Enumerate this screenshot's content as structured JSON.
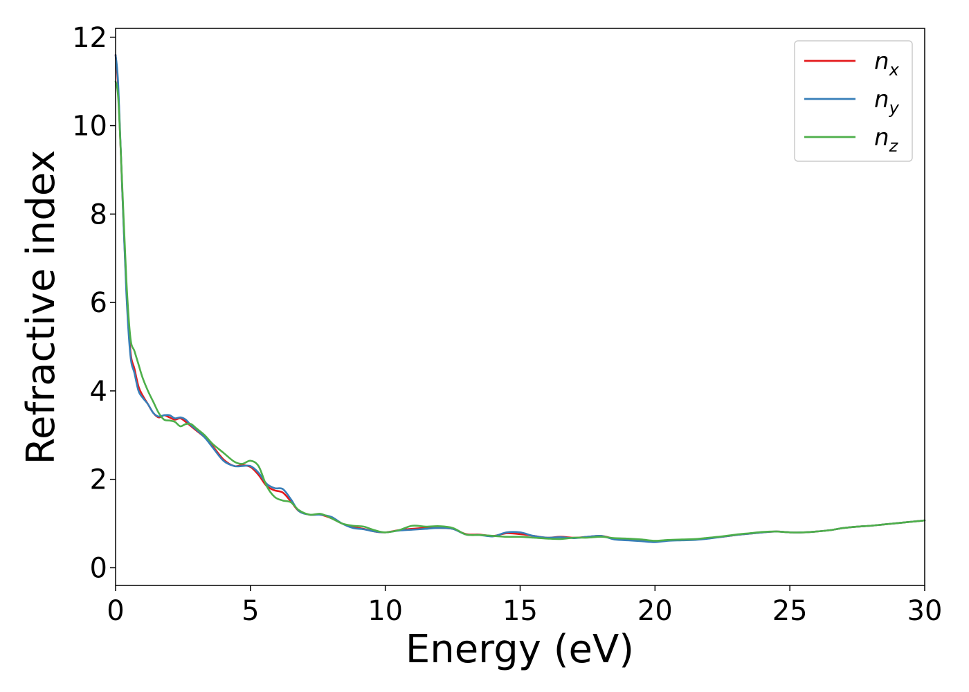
{
  "chart_data": {
    "type": "line",
    "xlabel": "Energy (eV)",
    "ylabel": "Refractive index",
    "xlim": [
      0,
      30
    ],
    "ylim": [
      -0.4,
      12.2
    ],
    "xticks": [
      0,
      5,
      10,
      15,
      20,
      25,
      30
    ],
    "yticks": [
      0,
      2,
      4,
      6,
      8,
      10,
      12
    ],
    "grid": false,
    "legend": "top-right",
    "series": [
      {
        "name": "n",
        "subscript": "x",
        "color": "#e41a1c",
        "x": [
          0,
          0.1,
          0.25,
          0.4,
          0.55,
          0.7,
          0.85,
          1.0,
          1.2,
          1.4,
          1.6,
          1.8,
          2.0,
          2.2,
          2.4,
          2.6,
          2.8,
          3.0,
          3.3,
          3.6,
          4.0,
          4.4,
          4.7,
          5.0,
          5.3,
          5.6,
          5.9,
          6.2,
          6.5,
          6.8,
          7.2,
          7.6,
          8.0,
          8.4,
          8.8,
          9.2,
          9.6,
          10.0,
          10.5,
          11.0,
          11.5,
          12.0,
          12.5,
          13.0,
          13.5,
          14.0,
          14.5,
          15.0,
          15.5,
          16.0,
          16.5,
          17.0,
          17.5,
          18.0,
          18.5,
          19.0,
          19.5,
          20.0,
          20.5,
          21.0,
          21.5,
          22.0,
          22.5,
          23.0,
          23.5,
          24.0,
          24.5,
          25.0,
          25.5,
          26.0,
          26.5,
          27.0,
          27.5,
          28.0,
          28.5,
          29.0,
          29.5,
          30.0
        ],
        "y": [
          11.6,
          10.8,
          8.5,
          6.3,
          4.9,
          4.5,
          4.1,
          3.9,
          3.7,
          3.5,
          3.4,
          3.45,
          3.4,
          3.35,
          3.38,
          3.3,
          3.2,
          3.1,
          2.95,
          2.75,
          2.45,
          2.3,
          2.32,
          2.28,
          2.1,
          1.85,
          1.75,
          1.7,
          1.5,
          1.28,
          1.2,
          1.2,
          1.12,
          1.0,
          0.92,
          0.88,
          0.82,
          0.8,
          0.85,
          0.88,
          0.9,
          0.9,
          0.88,
          0.76,
          0.75,
          0.72,
          0.78,
          0.76,
          0.72,
          0.68,
          0.7,
          0.68,
          0.7,
          0.72,
          0.66,
          0.64,
          0.62,
          0.6,
          0.62,
          0.63,
          0.64,
          0.67,
          0.7,
          0.74,
          0.77,
          0.8,
          0.82,
          0.8,
          0.8,
          0.82,
          0.85,
          0.9,
          0.93,
          0.95,
          0.98,
          1.01,
          1.04,
          1.07
        ]
      },
      {
        "name": "n",
        "subscript": "y",
        "color": "#377eb8",
        "x": [
          0,
          0.1,
          0.25,
          0.4,
          0.55,
          0.7,
          0.85,
          1.0,
          1.2,
          1.4,
          1.6,
          1.8,
          2.0,
          2.2,
          2.4,
          2.6,
          2.8,
          3.0,
          3.3,
          3.6,
          4.0,
          4.4,
          4.7,
          5.0,
          5.3,
          5.6,
          5.9,
          6.2,
          6.5,
          6.8,
          7.2,
          7.6,
          8.0,
          8.4,
          8.8,
          9.2,
          9.6,
          10.0,
          10.5,
          11.0,
          11.5,
          12.0,
          12.5,
          13.0,
          13.5,
          14.0,
          14.5,
          15.0,
          15.5,
          16.0,
          16.5,
          17.0,
          17.5,
          18.0,
          18.5,
          19.0,
          19.5,
          20.0,
          20.5,
          21.0,
          21.5,
          22.0,
          22.5,
          23.0,
          23.5,
          24.0,
          24.5,
          25.0,
          25.5,
          26.0,
          26.5,
          27.0,
          27.5,
          28.0,
          28.5,
          29.0,
          29.5,
          30.0
        ],
        "y": [
          11.6,
          10.9,
          8.5,
          6.2,
          4.8,
          4.4,
          4.0,
          3.85,
          3.7,
          3.5,
          3.42,
          3.45,
          3.45,
          3.38,
          3.4,
          3.35,
          3.22,
          3.12,
          2.95,
          2.72,
          2.42,
          2.3,
          2.3,
          2.3,
          2.15,
          1.9,
          1.8,
          1.78,
          1.55,
          1.28,
          1.2,
          1.2,
          1.15,
          1.0,
          0.9,
          0.87,
          0.82,
          0.8,
          0.84,
          0.86,
          0.88,
          0.9,
          0.88,
          0.75,
          0.74,
          0.71,
          0.8,
          0.8,
          0.72,
          0.68,
          0.69,
          0.67,
          0.7,
          0.72,
          0.64,
          0.62,
          0.6,
          0.58,
          0.61,
          0.62,
          0.63,
          0.66,
          0.7,
          0.74,
          0.77,
          0.8,
          0.82,
          0.8,
          0.8,
          0.82,
          0.85,
          0.9,
          0.93,
          0.95,
          0.98,
          1.01,
          1.04,
          1.07
        ]
      },
      {
        "name": "n",
        "subscript": "z",
        "color": "#4daf4a",
        "x": [
          0,
          0.1,
          0.25,
          0.4,
          0.55,
          0.7,
          0.85,
          1.0,
          1.2,
          1.4,
          1.6,
          1.8,
          2.0,
          2.2,
          2.4,
          2.6,
          2.8,
          3.0,
          3.3,
          3.6,
          4.0,
          4.4,
          4.7,
          5.0,
          5.3,
          5.6,
          5.9,
          6.2,
          6.5,
          6.8,
          7.2,
          7.6,
          8.0,
          8.4,
          8.8,
          9.2,
          9.6,
          10.0,
          10.5,
          11.0,
          11.5,
          12.0,
          12.5,
          13.0,
          13.5,
          14.0,
          14.5,
          15.0,
          15.5,
          16.0,
          16.5,
          17.0,
          17.5,
          18.0,
          18.5,
          19.0,
          19.5,
          20.0,
          20.5,
          21.0,
          21.5,
          22.0,
          22.5,
          23.0,
          23.5,
          24.0,
          24.5,
          25.0,
          25.5,
          26.0,
          26.5,
          27.0,
          27.5,
          28.0,
          28.5,
          29.0,
          29.5,
          30.0
        ],
        "y": [
          11.0,
          10.6,
          8.6,
          6.5,
          5.2,
          4.9,
          4.6,
          4.3,
          4.0,
          3.75,
          3.5,
          3.35,
          3.33,
          3.3,
          3.2,
          3.25,
          3.25,
          3.15,
          3.0,
          2.8,
          2.6,
          2.4,
          2.35,
          2.42,
          2.3,
          1.85,
          1.6,
          1.52,
          1.48,
          1.3,
          1.2,
          1.22,
          1.12,
          1.0,
          0.95,
          0.93,
          0.85,
          0.8,
          0.85,
          0.95,
          0.93,
          0.94,
          0.9,
          0.75,
          0.74,
          0.72,
          0.7,
          0.7,
          0.68,
          0.66,
          0.65,
          0.68,
          0.68,
          0.7,
          0.67,
          0.66,
          0.64,
          0.61,
          0.63,
          0.64,
          0.65,
          0.68,
          0.71,
          0.75,
          0.78,
          0.81,
          0.82,
          0.8,
          0.8,
          0.82,
          0.85,
          0.9,
          0.93,
          0.95,
          0.98,
          1.01,
          1.04,
          1.07
        ]
      }
    ]
  }
}
